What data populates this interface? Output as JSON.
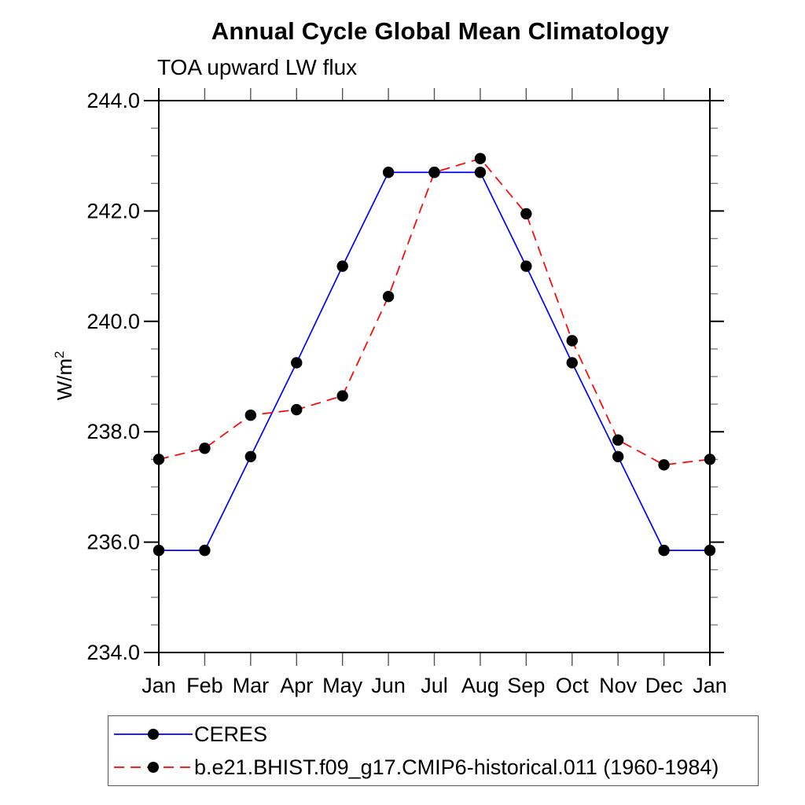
{
  "page": {
    "background": "#ffffff",
    "axis_color": "#000000"
  },
  "chart_data": {
    "type": "line",
    "title": "Annual Cycle Global Mean Climatology",
    "subtitle": "TOA upward LW flux",
    "ylabel": "W/m",
    "ylabel_superscript": "2",
    "xlabel": "",
    "categories": [
      "Jan",
      "Feb",
      "Mar",
      "Apr",
      "May",
      "Jun",
      "Jul",
      "Aug",
      "Sep",
      "Oct",
      "Nov",
      "Dec",
      "Jan"
    ],
    "ylim": [
      234.0,
      244.0
    ],
    "ytick_major_step": 2.0,
    "ytick_minor_step": 0.5,
    "ytick_labels": [
      "234.0",
      "236.0",
      "238.0",
      "240.0",
      "242.0",
      "244.0"
    ],
    "grid": false,
    "legend_position": "bottom-left",
    "marker": "filled-circle",
    "marker_color": "#000000",
    "series": [
      {
        "name": "CERES",
        "color": "#0000ff",
        "line_style": "solid",
        "values": [
          235.85,
          235.85,
          237.55,
          239.25,
          241.0,
          242.7,
          242.7,
          242.7,
          241.0,
          239.25,
          237.55,
          235.85,
          235.85
        ]
      },
      {
        "name": "b.e21.BHIST.f09_g17.CMIP6-historical.011 (1960-1984)",
        "color": "#ff0000",
        "line_style": "dashed",
        "values": [
          237.5,
          237.7,
          238.3,
          238.4,
          238.65,
          240.45,
          242.7,
          242.95,
          241.95,
          239.65,
          237.85,
          237.4,
          237.5
        ]
      }
    ]
  }
}
